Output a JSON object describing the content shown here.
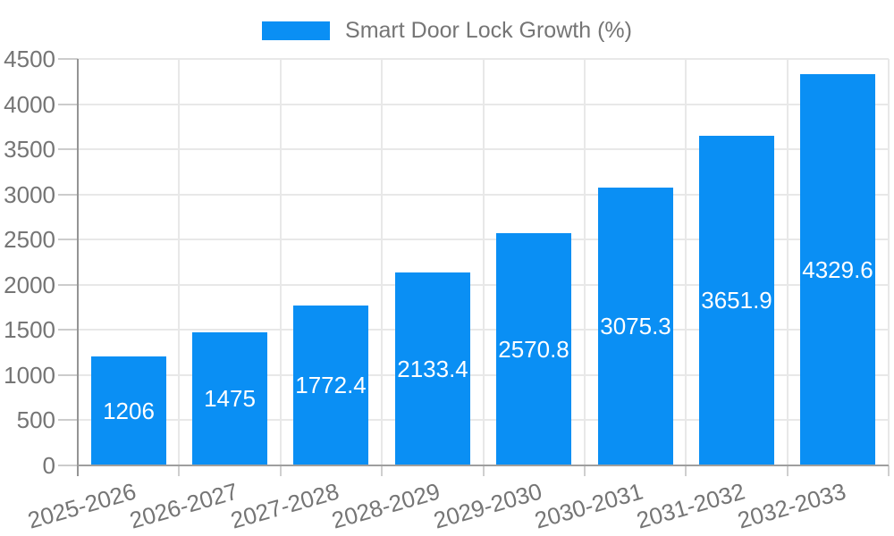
{
  "legend": {
    "label": "Smart Door Lock Growth (%)",
    "swatch_color": "#0a8ff4"
  },
  "chart_data": {
    "type": "bar",
    "title": "Smart Door Lock Growth (%)",
    "categories": [
      "2025-2026",
      "2026-2027",
      "2027-2028",
      "2028-2029",
      "2029-2030",
      "2030-2031",
      "2031-2032",
      "2032-2033"
    ],
    "values": [
      1206,
      1475,
      1772.4,
      2133.4,
      2570.8,
      3075.3,
      3651.9,
      4329.6
    ],
    "value_labels": [
      "1206",
      "1475",
      "1772.4",
      "2133.4",
      "2570.8",
      "3075.3",
      "3651.9",
      "4329.6"
    ],
    "ytick_labels": [
      "0",
      "500",
      "1000",
      "1500",
      "2000",
      "2500",
      "3000",
      "3500",
      "4000",
      "4500"
    ],
    "ylim": [
      0,
      4500
    ],
    "ytick_step": 500,
    "xlabel": "",
    "ylabel": "",
    "grid": true,
    "legend_position": "top",
    "colors": {
      "bar": "#0a8ff4",
      "value_label": "#ffffff",
      "axis_text": "#757575",
      "gridline": "#e8e8e8",
      "axis_line": "#949494",
      "tick": "#cccccc",
      "background": "#ffffff"
    }
  }
}
